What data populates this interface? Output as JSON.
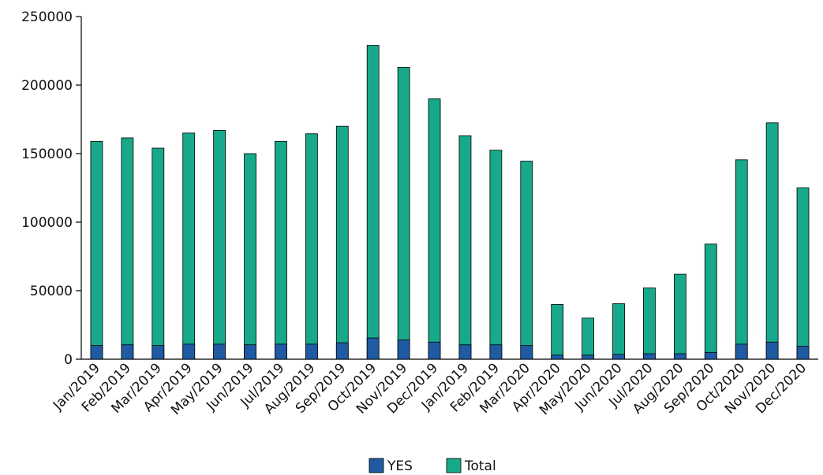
{
  "chart_data": {
    "type": "bar",
    "stacked": true,
    "categories": [
      "Jan/2019",
      "Feb/2019",
      "Mar/2019",
      "Apr/2019",
      "May/2019",
      "Jun/2019",
      "Jul/2019",
      "Aug/2019",
      "Sep/2019",
      "Oct/2019",
      "Nov/2019",
      "Dec/2019",
      "Jan/2019",
      "Feb/2019",
      "Mar/2020",
      "Apr/2020",
      "May/2020",
      "Jun/2020",
      "Jul/2020",
      "Aug/2020",
      "Sep/2020",
      "Oct/2020",
      "Nov/2020",
      "Dec/2020"
    ],
    "series": [
      {
        "name": "YES",
        "color": "#1f5ba3",
        "values": [
          10000,
          10500,
          10000,
          11000,
          11000,
          10500,
          11000,
          11000,
          12000,
          15500,
          14000,
          12500,
          10500,
          10500,
          10000,
          3000,
          3000,
          3500,
          4000,
          4000,
          5000,
          11000,
          12500,
          9500
        ]
      },
      {
        "name": "Total",
        "color": "#17a98a",
        "values": [
          159000,
          161500,
          154000,
          165000,
          167000,
          150000,
          159000,
          164500,
          170000,
          229000,
          213000,
          190000,
          163000,
          152500,
          144500,
          40000,
          30000,
          40500,
          52000,
          62000,
          84000,
          145500,
          172500,
          125000
        ]
      }
    ],
    "legend": {
      "position": "bottom",
      "entries": [
        "YES",
        "Total"
      ]
    },
    "yticks": [
      "0",
      "50000",
      "100000",
      "150000",
      "200000",
      "250000"
    ],
    "ylim": [
      0,
      250000
    ],
    "grid": false
  }
}
